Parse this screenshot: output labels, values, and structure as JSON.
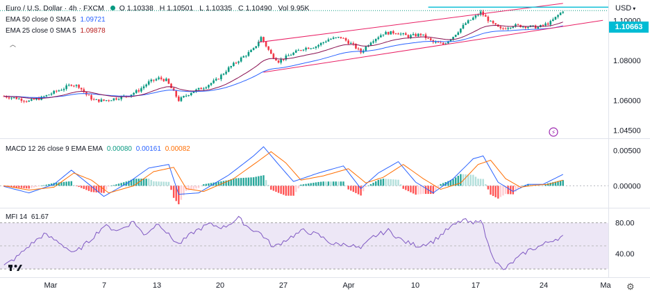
{
  "header": {
    "symbol": "Euro / U.S. Dollar · 4h · FXCM",
    "open_label": "O",
    "open": "1.10338",
    "high_label": "H",
    "high": "1.10501",
    "low_label": "L",
    "low": "1.10335",
    "close_label": "C",
    "close": "1.10490",
    "vol_label": "Vol",
    "vol": "9.95K",
    "currency": "USD"
  },
  "indicators": {
    "ema50_label": "EMA 50 close 0 SMA 5",
    "ema50_value": "1.09721",
    "ema25_label": "EMA 25 close 0 SMA 5",
    "ema25_value": "1.09878",
    "macd_label": "MACD 12 26 close 9 EMA EMA",
    "macd_hist": "0.00080",
    "macd_line": "0.00161",
    "macd_signal": "0.00082",
    "mfi_label": "MFI 14",
    "mfi_value": "61.67"
  },
  "colors": {
    "bull": "#089981",
    "bear": "#f23645",
    "ema50": "#2962ff",
    "ema25": "#880e4f",
    "channel": "#e91e63",
    "resistance": "#00bcd4",
    "macd": "#2962ff",
    "signal": "#ff6d00",
    "mfi": "#7e57c2",
    "mfi_band": "#ede7f6"
  },
  "chart_data": {
    "type": "candlestick",
    "price_axis": {
      "ticks": [
        "1.10000",
        "1.08000",
        "1.06000",
        "1.04500"
      ],
      "current": "1.10663"
    },
    "x_ticks": [
      "Mar",
      "7",
      "13",
      "20",
      "27",
      "Apr",
      "10",
      "17",
      "24",
      "Ma"
    ],
    "price_path": [
      [
        0,
        1.062
      ],
      [
        5,
        1.061
      ],
      [
        10,
        1.0595
      ],
      [
        15,
        1.0612
      ],
      [
        20,
        1.064
      ],
      [
        24,
        1.066
      ],
      [
        27,
        1.068
      ],
      [
        30,
        1.067
      ],
      [
        33,
        1.0628
      ],
      [
        36,
        1.06
      ],
      [
        40,
        1.0598
      ],
      [
        45,
        1.061
      ],
      [
        50,
        1.0625
      ],
      [
        54,
        1.065
      ],
      [
        58,
        1.069
      ],
      [
        62,
        1.071
      ],
      [
        65,
        1.07
      ],
      [
        68,
        1.064
      ],
      [
        70,
        1.06
      ],
      [
        75,
        1.064
      ],
      [
        80,
        1.0665
      ],
      [
        85,
        1.07
      ],
      [
        90,
        1.076
      ],
      [
        95,
        1.081
      ],
      [
        100,
        1.0855
      ],
      [
        103,
        1.0915
      ],
      [
        107,
        1.083
      ],
      [
        110,
        1.0795
      ],
      [
        115,
        1.083
      ],
      [
        120,
        1.086
      ],
      [
        125,
        1.087
      ],
      [
        130,
        1.0905
      ],
      [
        135,
        1.0915
      ],
      [
        140,
        1.0875
      ],
      [
        143,
        1.084
      ],
      [
        147,
        1.0895
      ],
      [
        152,
        1.0935
      ],
      [
        157,
        1.094
      ],
      [
        162,
        1.092
      ],
      [
        167,
        1.093
      ],
      [
        172,
        1.089
      ],
      [
        176,
        1.088
      ],
      [
        180,
        1.092
      ],
      [
        185,
        1.0985
      ],
      [
        189,
        1.102
      ],
      [
        191,
        1.104
      ],
      [
        195,
        1.099
      ],
      [
        199,
        1.0955
      ],
      [
        204,
        1.0975
      ],
      [
        209,
        1.097
      ],
      [
        214,
        1.0965
      ],
      [
        219,
        1.099
      ],
      [
        224,
        1.1049
      ]
    ],
    "macd_path": [
      [
        0,
        -0.0001
      ],
      [
        10,
        -0.001
      ],
      [
        20,
        0.0002
      ],
      [
        27,
        0.0022
      ],
      [
        33,
        0.0005
      ],
      [
        40,
        -0.0015
      ],
      [
        50,
        0.0005
      ],
      [
        58,
        0.0025
      ],
      [
        66,
        0.003
      ],
      [
        70,
        -0.0012
      ],
      [
        78,
        -0.001
      ],
      [
        90,
        0.0015
      ],
      [
        100,
        0.0042
      ],
      [
        104,
        0.0055
      ],
      [
        110,
        0.003
      ],
      [
        116,
        0.0006
      ],
      [
        126,
        0.0018
      ],
      [
        136,
        0.0028
      ],
      [
        143,
        -0.0004
      ],
      [
        150,
        0.0018
      ],
      [
        158,
        0.0034
      ],
      [
        165,
        0.0005
      ],
      [
        172,
        -0.001
      ],
      [
        180,
        0.001
      ],
      [
        188,
        0.0038
      ],
      [
        192,
        0.0042
      ],
      [
        198,
        0.0005
      ],
      [
        204,
        -0.0008
      ],
      [
        210,
        0.0002
      ],
      [
        216,
        0.0002
      ],
      [
        224,
        0.0016
      ]
    ],
    "signal_path": [
      [
        0,
        0.0
      ],
      [
        10,
        -0.0006
      ],
      [
        20,
        -0.0002
      ],
      [
        28,
        0.0018
      ],
      [
        35,
        0.0008
      ],
      [
        42,
        -0.001
      ],
      [
        52,
        0.0
      ],
      [
        60,
        0.002
      ],
      [
        68,
        0.0026
      ],
      [
        73,
        -0.0004
      ],
      [
        80,
        -0.0008
      ],
      [
        92,
        0.001
      ],
      [
        102,
        0.0035
      ],
      [
        107,
        0.0048
      ],
      [
        113,
        0.0032
      ],
      [
        119,
        0.0008
      ],
      [
        128,
        0.0014
      ],
      [
        138,
        0.0024
      ],
      [
        145,
        0.0004
      ],
      [
        152,
        0.0012
      ],
      [
        160,
        0.003
      ],
      [
        168,
        0.001
      ],
      [
        175,
        -0.0005
      ],
      [
        183,
        0.0004
      ],
      [
        190,
        0.003
      ],
      [
        195,
        0.0036
      ],
      [
        201,
        0.001
      ],
      [
        207,
        -0.0002
      ],
      [
        213,
        0.0001
      ],
      [
        218,
        0.0002
      ],
      [
        224,
        0.0008
      ]
    ],
    "mfi_path": [
      [
        0,
        24
      ],
      [
        5,
        35
      ],
      [
        10,
        50
      ],
      [
        16,
        65
      ],
      [
        22,
        55
      ],
      [
        28,
        40
      ],
      [
        34,
        56
      ],
      [
        40,
        76
      ],
      [
        46,
        70
      ],
      [
        52,
        82
      ],
      [
        56,
        64
      ],
      [
        62,
        80
      ],
      [
        66,
        64
      ],
      [
        70,
        52
      ],
      [
        76,
        68
      ],
      [
        82,
        78
      ],
      [
        88,
        74
      ],
      [
        94,
        86
      ],
      [
        98,
        74
      ],
      [
        103,
        66
      ],
      [
        108,
        48
      ],
      [
        114,
        60
      ],
      [
        120,
        70
      ],
      [
        126,
        64
      ],
      [
        132,
        52
      ],
      [
        138,
        52
      ],
      [
        143,
        46
      ],
      [
        148,
        62
      ],
      [
        154,
        70
      ],
      [
        160,
        56
      ],
      [
        166,
        50
      ],
      [
        172,
        56
      ],
      [
        178,
        72
      ],
      [
        184,
        84
      ],
      [
        188,
        78
      ],
      [
        191,
        86
      ],
      [
        194,
        52
      ],
      [
        197,
        30
      ],
      [
        200,
        18
      ],
      [
        205,
        32
      ],
      [
        210,
        44
      ],
      [
        215,
        50
      ],
      [
        220,
        58
      ],
      [
        224,
        62
      ]
    ],
    "mfi_axis": [
      "80.00",
      "40.00"
    ],
    "macd_axis": [
      "0.00500",
      "0.00000"
    ],
    "ranges": {
      "price": [
        1.042,
        1.1095
      ],
      "macd": [
        -0.0028,
        0.0062
      ],
      "mfi": [
        12,
        95
      ]
    },
    "channel": {
      "upper_from": [
        102,
        1.089
      ],
      "upper_to": [
        224,
        1.1085
      ],
      "lower_from": [
        104,
        1.074
      ],
      "lower_to": [
        240,
        1.1
      ]
    },
    "resistance": {
      "from": [
        170,
        1.1066
      ],
      "to": [
        240,
        1.1066
      ]
    }
  }
}
